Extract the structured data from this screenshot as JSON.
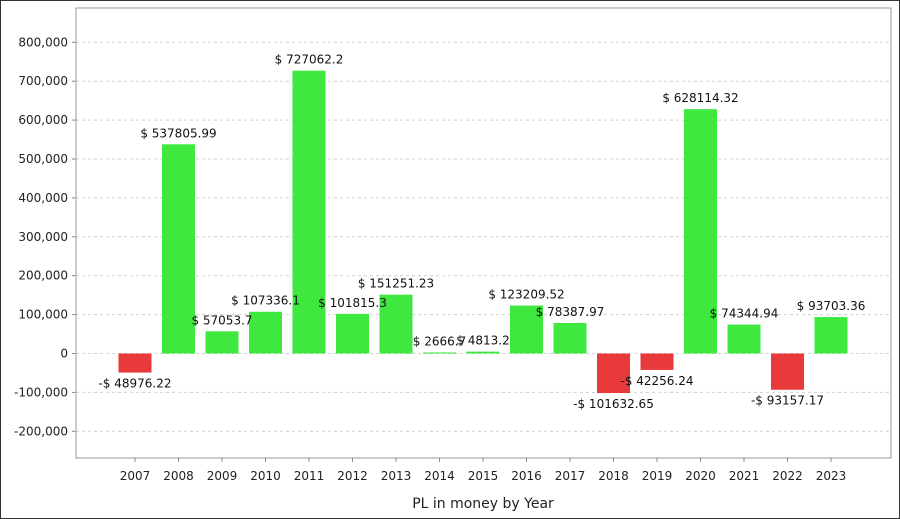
{
  "chart_data": {
    "type": "bar",
    "title": "",
    "xlabel": "PL in money by Year",
    "ylabel": "",
    "ylim": [
      -250000,
      850000
    ],
    "yticks": [
      800000,
      700000,
      600000,
      500000,
      400000,
      300000,
      200000,
      100000,
      0,
      -100000,
      -200000
    ],
    "ytick_labels": [
      "800,000",
      "700,000",
      "600,000",
      "500,000",
      "400,000",
      "300,000",
      "200,000",
      "100,000",
      "0",
      "-100,000",
      "-200,000"
    ],
    "grid": true,
    "legend": "none",
    "categories": [
      "2007",
      "2008",
      "2009",
      "2010",
      "2011",
      "2012",
      "2013",
      "2014",
      "2015",
      "2016",
      "2017",
      "2018",
      "2019",
      "2020",
      "2021",
      "2022",
      "2023"
    ],
    "values": [
      -48976.22,
      537805.99,
      57053.7,
      107336.1,
      727062.2,
      101815.3,
      151251.23,
      2666.7,
      4813.2,
      123209.52,
      78387.97,
      -101632.65,
      -42256.24,
      628114.32,
      74344.94,
      -93157.17,
      93703.36
    ],
    "data_labels": [
      "-$ 48976.22",
      "$ 537805.99",
      "$ 57053.7",
      "$ 107336.1",
      "$ 727062.2",
      "$ 101815.3",
      "$ 151251.23",
      "$ 2666.7",
      "$ 4813.2",
      "$ 123209.52",
      "$ 78387.97",
      "-$ 101632.65",
      "-$ 42256.24",
      "$ 628114.32",
      "$ 74344.94",
      "-$ 93157.17",
      "$ 93703.36"
    ],
    "colors": {
      "positive": "#3ee83e",
      "negative": "#e83a3a",
      "grid": "#d0d0d0",
      "axis": "#888888"
    }
  }
}
